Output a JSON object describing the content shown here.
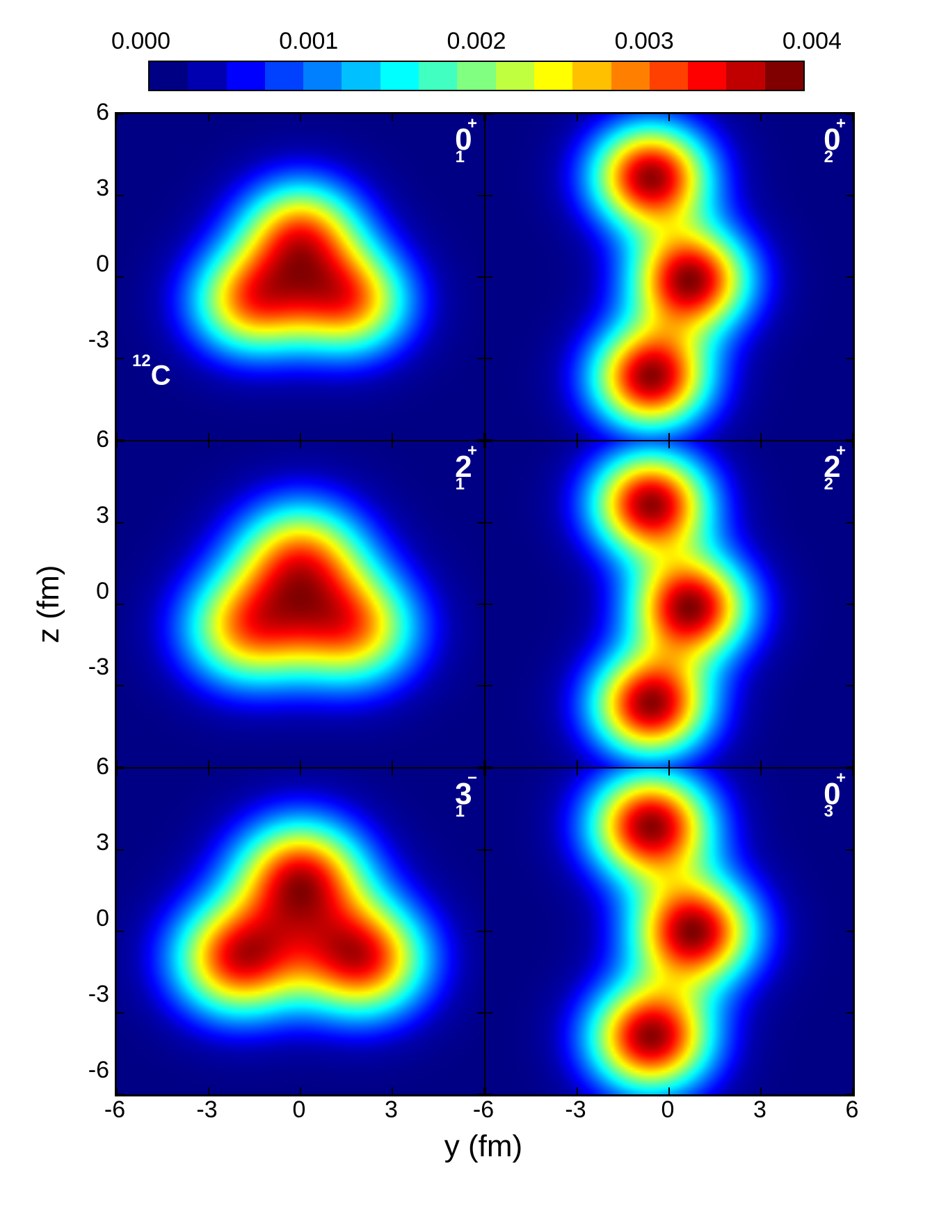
{
  "figure": {
    "nucleus": "12C",
    "type": "heatmap",
    "background_color": "#ffffff",
    "xlabel": "y (fm)",
    "ylabel": "z (fm)",
    "label_fontsize": 44,
    "tick_fontsize": 34,
    "xlim": [
      -6,
      6
    ],
    "ylim": [
      -6,
      6
    ],
    "xticks": [
      -6,
      -3,
      0,
      3,
      6
    ],
    "yticks": [
      -6,
      -3,
      0,
      3,
      6
    ],
    "colorbar": {
      "min": 0.0,
      "max": 0.0045,
      "ticks": [
        "0.000",
        "0.001",
        "0.002",
        "0.003",
        "0.004"
      ],
      "colormap": "jet",
      "colors": [
        "#000084",
        "#0000b0",
        "#0000ff",
        "#0040ff",
        "#0080ff",
        "#00c0ff",
        "#00ffff",
        "#40ffc0",
        "#80ff80",
        "#c0ff40",
        "#ffff00",
        "#ffc000",
        "#ff8000",
        "#ff4000",
        "#ff0000",
        "#c00000",
        "#800000"
      ]
    },
    "panel_bg": "#000084",
    "cluster_max_color": "#800000",
    "text_color": "#ffffff",
    "panels": [
      {
        "id": "p0",
        "state_J": "0",
        "state_sub": "1",
        "state_sup": "+",
        "nucleus_label": true,
        "clusters": [
          {
            "y": -1.6,
            "z": -0.9,
            "sigma": 1.4
          },
          {
            "y": 1.6,
            "z": -0.9,
            "sigma": 1.4
          },
          {
            "y": 0.0,
            "z": 1.6,
            "sigma": 1.4
          }
        ]
      },
      {
        "id": "p1",
        "state_J": "0",
        "state_sub": "2",
        "state_sup": "+",
        "clusters": [
          {
            "y": -0.6,
            "z": 3.7,
            "sigma": 1.35
          },
          {
            "y": 0.7,
            "z": -0.1,
            "sigma": 1.35
          },
          {
            "y": -0.6,
            "z": -3.7,
            "sigma": 1.35
          }
        ]
      },
      {
        "id": "p2",
        "state_J": "2",
        "state_sub": "1",
        "state_sup": "+",
        "clusters": [
          {
            "y": -1.7,
            "z": -0.9,
            "sigma": 1.5
          },
          {
            "y": 1.7,
            "z": -0.9,
            "sigma": 1.5
          },
          {
            "y": 0.0,
            "z": 1.7,
            "sigma": 1.5
          }
        ]
      },
      {
        "id": "p3",
        "state_J": "2",
        "state_sub": "2",
        "state_sup": "+",
        "clusters": [
          {
            "y": -0.6,
            "z": 3.7,
            "sigma": 1.35
          },
          {
            "y": 0.7,
            "z": -0.1,
            "sigma": 1.35
          },
          {
            "y": -0.6,
            "z": -3.7,
            "sigma": 1.35
          }
        ]
      },
      {
        "id": "p4",
        "state_J": "3",
        "state_sub": "1",
        "state_sup": "−",
        "clusters": [
          {
            "y": -2.0,
            "z": -1.0,
            "sigma": 1.5
          },
          {
            "y": 2.0,
            "z": -1.0,
            "sigma": 1.5
          },
          {
            "y": 0.0,
            "z": 2.0,
            "sigma": 1.5
          }
        ]
      },
      {
        "id": "p5",
        "state_J": "0",
        "state_sub": "3",
        "state_sup": "+",
        "clusters": [
          {
            "y": -0.6,
            "z": 3.9,
            "sigma": 1.4
          },
          {
            "y": 0.8,
            "z": 0.0,
            "sigma": 1.4
          },
          {
            "y": -0.6,
            "z": -3.9,
            "sigma": 1.4
          }
        ]
      }
    ]
  }
}
